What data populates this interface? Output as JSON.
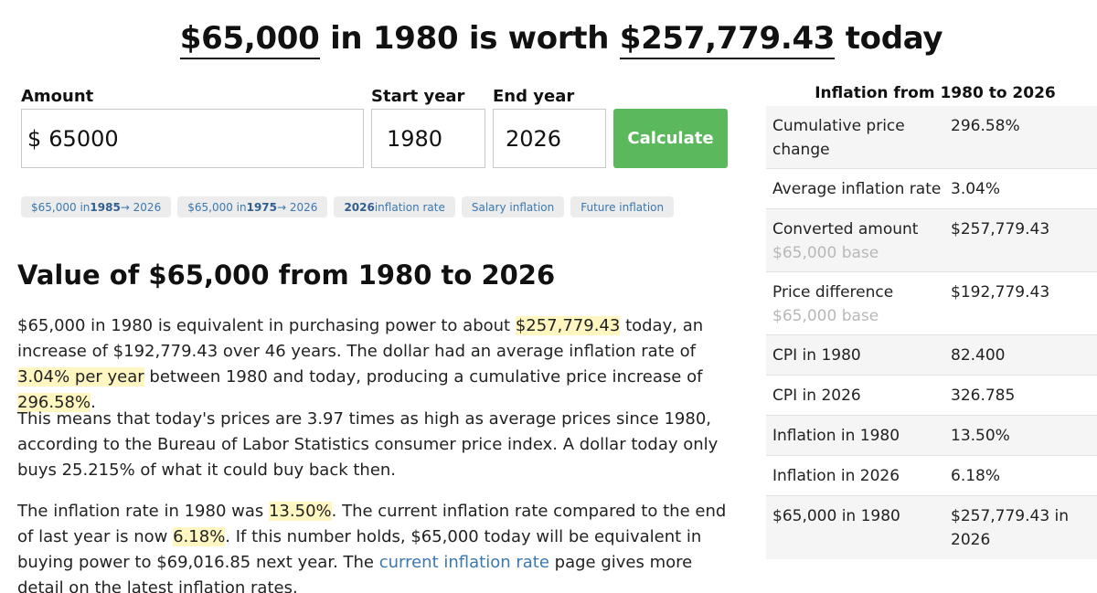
{
  "headline": {
    "amount": "$65,000",
    "mid": "in 1980 is worth",
    "value": "$257,779.43",
    "end": "today"
  },
  "form": {
    "amount_label": "Amount",
    "amount_prefix": "$",
    "amount_value": "65000",
    "start_label": "Start year",
    "start_value": "1980",
    "end_label": "End year",
    "end_value": "2026",
    "calculate_label": "Calculate"
  },
  "chips": [
    {
      "pre": "$65,000 in ",
      "bold": "1985",
      "post": " → 2026"
    },
    {
      "pre": "$65,000 in ",
      "bold": "1975",
      "post": " → 2026"
    },
    {
      "pre": "",
      "bold": "2026",
      "post": " inflation rate"
    },
    {
      "pre": "",
      "bold": "",
      "post": "Salary inflation"
    },
    {
      "pre": "",
      "bold": "",
      "post": "Future inflation"
    }
  ],
  "article": {
    "heading": "Value of $65,000 from 1980 to 2026",
    "p1": {
      "a": "$65,000 in 1980 is equivalent in purchasing power to about ",
      "h1": "$257,779.43",
      "b": " today, an increase of $192,779.43 over 46 years. The dollar had an average inflation rate of ",
      "h2": "3.04% per year",
      "c": " between 1980 and today, producing a cumulative price increase of ",
      "h3": "296.58%",
      "d": "."
    },
    "p2": "This means that today's prices are 3.97 times as high as average prices since 1980, according to the Bureau of Labor Statistics consumer price index. A dollar today only buys 25.215% of what it could buy back then.",
    "p3": {
      "a": "The inflation rate in 1980 was ",
      "h1": "13.50%",
      "b": ". The current inflation rate compared to the end of last year is now ",
      "h2": "6.18%",
      "c": ". If this number holds, $65,000 today will be equivalent in buying power to $69,016.85 next year. The ",
      "link": "current inflation rate",
      "d": " page gives more detail on the latest inflation rates."
    }
  },
  "sidebar": {
    "title": "Inflation from 1980 to 2026",
    "rows": [
      {
        "key": "Cumulative price change",
        "sub": "",
        "value": "296.58%"
      },
      {
        "key": "Average inflation rate",
        "sub": "",
        "value": "3.04%"
      },
      {
        "key": "Converted amount",
        "sub": "$65,000 base",
        "value": "$257,779.43"
      },
      {
        "key": "Price difference",
        "sub": "$65,000 base",
        "value": "$192,779.43"
      },
      {
        "key": "CPI in 1980",
        "sub": "",
        "value": "82.400"
      },
      {
        "key": "CPI in 2026",
        "sub": "",
        "value": "326.785"
      },
      {
        "key": "Inflation in 1980",
        "sub": "",
        "value": "13.50%"
      },
      {
        "key": "Inflation in 2026",
        "sub": "",
        "value": "6.18%"
      },
      {
        "key": "$65,000 in 1980",
        "sub": "",
        "value": "$257,779.43 in 2026"
      }
    ]
  }
}
